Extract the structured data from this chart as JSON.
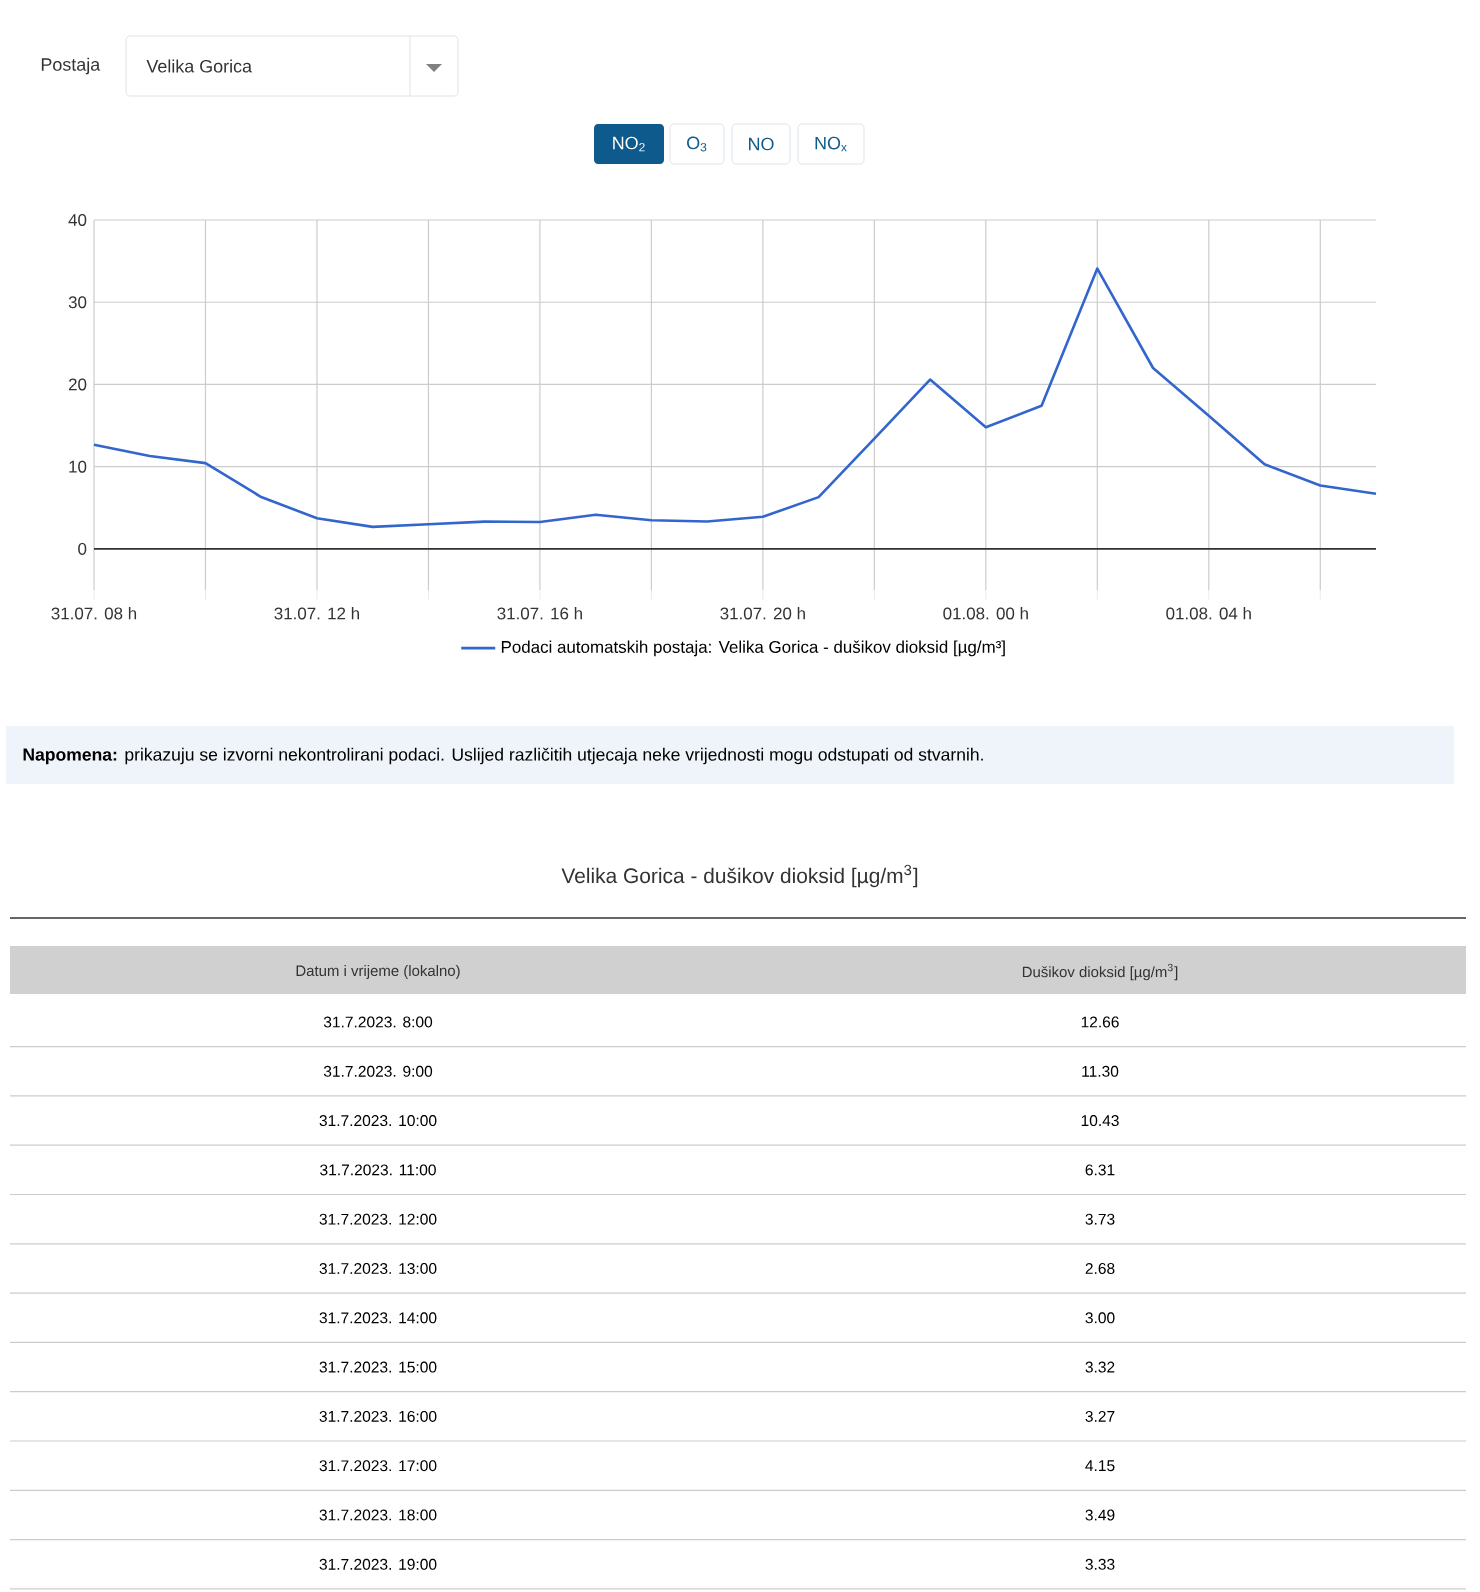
{
  "chart_data": {
    "type": "line",
    "categories": [
      "31.07. 08 h",
      null,
      null,
      null,
      "31.07. 12 h",
      null,
      null,
      null,
      "31.07. 16 h",
      null,
      null,
      null,
      "31.07. 20 h",
      null,
      null,
      null,
      "01.08. 00 h",
      null,
      null,
      null,
      "01.08. 04 h",
      null,
      null,
      null
    ],
    "series": [
      {
        "name": "Podaci automatskih postaja: Velika Gorica - dušikov dioksid [µg/m³]",
        "color": "#3366cc",
        "values": [
          12.66,
          11.3,
          10.43,
          6.31,
          3.73,
          2.68,
          3.0,
          3.32,
          3.27,
          4.15,
          3.49,
          3.33,
          3.9,
          6.3,
          13.4,
          20.6,
          14.8,
          17.4,
          34.1,
          22.0,
          16.2,
          10.3,
          7.7,
          6.7
        ]
      }
    ],
    "ylim": [
      -5,
      40
    ],
    "yticks": [
      0,
      10,
      20,
      30,
      40
    ],
    "grid": true,
    "legend": "bottom",
    "marker": "none",
    "line_style": "solid",
    "ref_lines": [
      {
        "axis": "y",
        "value": 0,
        "label": null,
        "color": "#333333"
      }
    ],
    "annotations": [
      "Postaja",
      "Velika Gorica",
      "NO$_{2}$",
      "O$_{3}$",
      "NO",
      "NO$_{x}$",
      "**Napomena:** prikazuju se izvorni nekontrolirani podaci. Uslijed različitih utjecaja neke vrijednosti mogu odstupati od stvarnih.",
      "Velika Gorica - dušikov dioksid [µg/m$^{3}$]",
      "Datum i vrijeme (lokalno)",
      "Dušikov dioksid [µg/m$^{3}$]",
      "31.7.2023. 8:00",
      "31.7.2023. 9:00",
      "31.7.2023. 10:00",
      "31.7.2023. 11:00",
      "31.7.2023. 12:00",
      "31.7.2023. 13:00",
      "31.7.2023. 14:00",
      "31.7.2023. 15:00",
      "31.7.2023. 16:00",
      "31.7.2023. 17:00",
      "31.7.2023. 18:00",
      "31.7.2023. 19:00",
      "12.66",
      "11.30",
      "10.43",
      "6.31",
      "3.73",
      "2.68",
      "3.00",
      "3.32",
      "3.27",
      "4.15",
      "3.49",
      "3.33"
    ]
  }
}
